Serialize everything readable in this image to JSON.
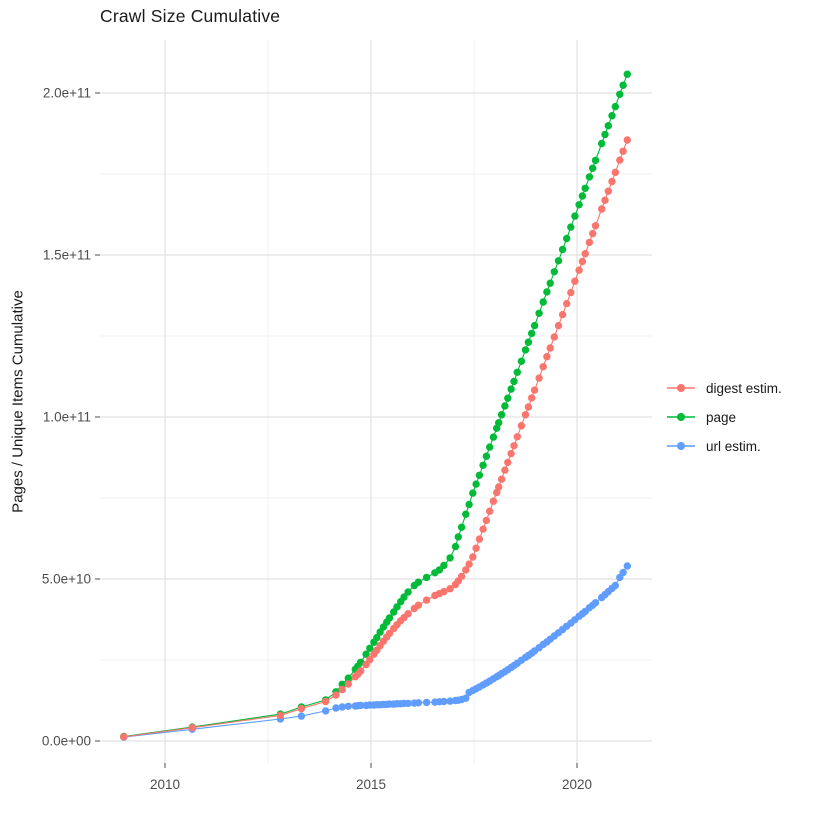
{
  "title": "Crawl Size Cumulative",
  "y_axis": {
    "label": "Pages / Unique Items Cumulative",
    "tick_labels": [
      "0.0e+00",
      "5.0e+10",
      "1.0e+11",
      "1.5e+11",
      "2.0e+11"
    ],
    "tick_values_billions": [
      0,
      50,
      100,
      150,
      200
    ],
    "minor_values_billions": [
      25,
      75,
      125,
      175
    ]
  },
  "x_axis": {
    "tick_labels": [
      "2010",
      "2015",
      "2020"
    ],
    "tick_values": [
      2010,
      2015,
      2020
    ],
    "minor_values": [
      2012.5,
      2017.5
    ]
  },
  "legend": {
    "items": [
      {
        "label": "digest estim.",
        "color": "#F8766D"
      },
      {
        "label": "page",
        "color": "#00BA38"
      },
      {
        "label": "url estim.",
        "color": "#619CFF"
      }
    ]
  },
  "colors": {
    "digest": "#F8766D",
    "page": "#00BA38",
    "url": "#619CFF",
    "grid_major": "#E2E2E2",
    "grid_minor": "#F0F0F0",
    "tick_text": "#4D4D4D",
    "tick_mark": "#4D4D4D",
    "background": "#FFFFFF"
  },
  "chart_data": {
    "type": "scatter",
    "title": "Crawl Size Cumulative",
    "xlabel": "",
    "ylabel": "Pages / Unique Items Cumulative",
    "xlim": [
      2008.4,
      2021.9
    ],
    "ylim_billions": [
      0,
      216
    ],
    "grid": "on",
    "legend_position": "right",
    "unit_note": "values are cumulative counts in billions (1e9)",
    "x": [
      2009.0,
      2010.66,
      2012.8,
      2013.31,
      2013.9,
      2014.15,
      2014.3,
      2014.45,
      2014.62,
      2014.68,
      2014.75,
      2014.88,
      2014.97,
      2015.07,
      2015.14,
      2015.22,
      2015.3,
      2015.38,
      2015.45,
      2015.55,
      2015.63,
      2015.72,
      2015.8,
      2015.9,
      2016.05,
      2016.15,
      2016.35,
      2016.55,
      2016.66,
      2016.77,
      2016.92,
      2017.05,
      2017.12,
      2017.2,
      2017.3,
      2017.38,
      2017.47,
      2017.55,
      2017.63,
      2017.72,
      2017.8,
      2017.88,
      2017.97,
      2018.05,
      2018.1,
      2018.17,
      2018.25,
      2018.32,
      2018.4,
      2018.47,
      2018.55,
      2018.65,
      2018.75,
      2018.82,
      2018.9,
      2018.97,
      2019.08,
      2019.18,
      2019.27,
      2019.35,
      2019.45,
      2019.55,
      2019.65,
      2019.75,
      2019.85,
      2019.95,
      2020.05,
      2020.13,
      2020.2,
      2020.3,
      2020.38,
      2020.45,
      2020.6,
      2020.68,
      2020.76,
      2020.85,
      2020.93,
      2021.04,
      2021.12,
      2021.22
    ],
    "series": [
      {
        "name": "url estim.",
        "color": "#619CFF",
        "values": [
          1.2,
          3.6,
          6.8,
          7.7,
          9.3,
          10.2,
          10.5,
          10.7,
          10.8,
          10.9,
          11.0,
          11.0,
          11.1,
          11.1,
          11.2,
          11.2,
          11.3,
          11.3,
          11.4,
          11.4,
          11.5,
          11.5,
          11.6,
          11.6,
          11.7,
          11.8,
          11.9,
          12.0,
          12.1,
          12.2,
          12.3,
          12.5,
          12.6,
          12.8,
          13.2,
          15.0,
          15.6,
          16.1,
          16.7,
          17.3,
          17.9,
          18.5,
          19.2,
          19.8,
          20.2,
          20.8,
          21.4,
          22.0,
          22.7,
          23.3,
          24.0,
          24.9,
          25.8,
          26.4,
          27.1,
          27.8,
          28.8,
          29.8,
          30.6,
          31.4,
          32.4,
          33.4,
          34.4,
          35.4,
          36.4,
          37.4,
          38.5,
          39.3,
          40.0,
          41.1,
          41.9,
          42.7,
          44.3,
          45.2,
          46.1,
          47.1,
          48.0,
          50.5,
          52.0,
          54.0
        ]
      },
      {
        "name": "page",
        "color": "#00BA38",
        "values": [
          1.4,
          4.3,
          8.3,
          10.5,
          12.7,
          15.2,
          17.5,
          19.4,
          22.1,
          23.1,
          24.3,
          26.8,
          28.6,
          30.5,
          31.9,
          33.6,
          35.2,
          36.7,
          38.0,
          39.8,
          41.4,
          43.0,
          44.4,
          46.0,
          48.0,
          49.0,
          50.5,
          51.9,
          52.8,
          54.2,
          56.5,
          60.0,
          63.0,
          66.0,
          70.0,
          73.0,
          76.5,
          79.3,
          82.0,
          85.1,
          87.9,
          90.7,
          93.8,
          96.5,
          98.2,
          100.7,
          103.4,
          105.8,
          108.6,
          111.0,
          113.8,
          117.2,
          120.7,
          123.1,
          125.8,
          128.2,
          132.0,
          135.5,
          138.6,
          141.3,
          144.8,
          148.2,
          151.7,
          155.1,
          158.6,
          162.0,
          165.5,
          168.2,
          170.6,
          174.1,
          176.8,
          179.2,
          184.4,
          187.2,
          189.9,
          193.0,
          195.8,
          199.6,
          202.4,
          205.8
        ]
      },
      {
        "name": "digest estim.",
        "color": "#F8766D",
        "values": [
          1.3,
          4.1,
          7.9,
          10.0,
          12.2,
          14.2,
          15.9,
          17.6,
          19.8,
          20.6,
          21.6,
          23.6,
          25.1,
          26.8,
          28.0,
          29.4,
          30.8,
          32.1,
          33.2,
          34.7,
          35.9,
          37.1,
          38.1,
          39.3,
          40.9,
          41.9,
          43.5,
          44.9,
          45.5,
          46.1,
          47.0,
          48.3,
          49.4,
          50.8,
          52.8,
          54.6,
          56.8,
          59.5,
          62.3,
          65.4,
          68.1,
          70.9,
          74.0,
          76.7,
          78.4,
          80.8,
          83.6,
          86.0,
          88.7,
          91.1,
          93.9,
          97.3,
          100.7,
          103.1,
          105.9,
          108.3,
          112.0,
          115.5,
          118.6,
          121.3,
          124.7,
          128.2,
          131.6,
          135.0,
          138.4,
          141.9,
          145.3,
          148.0,
          150.4,
          153.9,
          156.6,
          159.0,
          164.2,
          166.9,
          169.7,
          172.7,
          175.5,
          179.3,
          182.0,
          185.5
        ]
      }
    ]
  }
}
